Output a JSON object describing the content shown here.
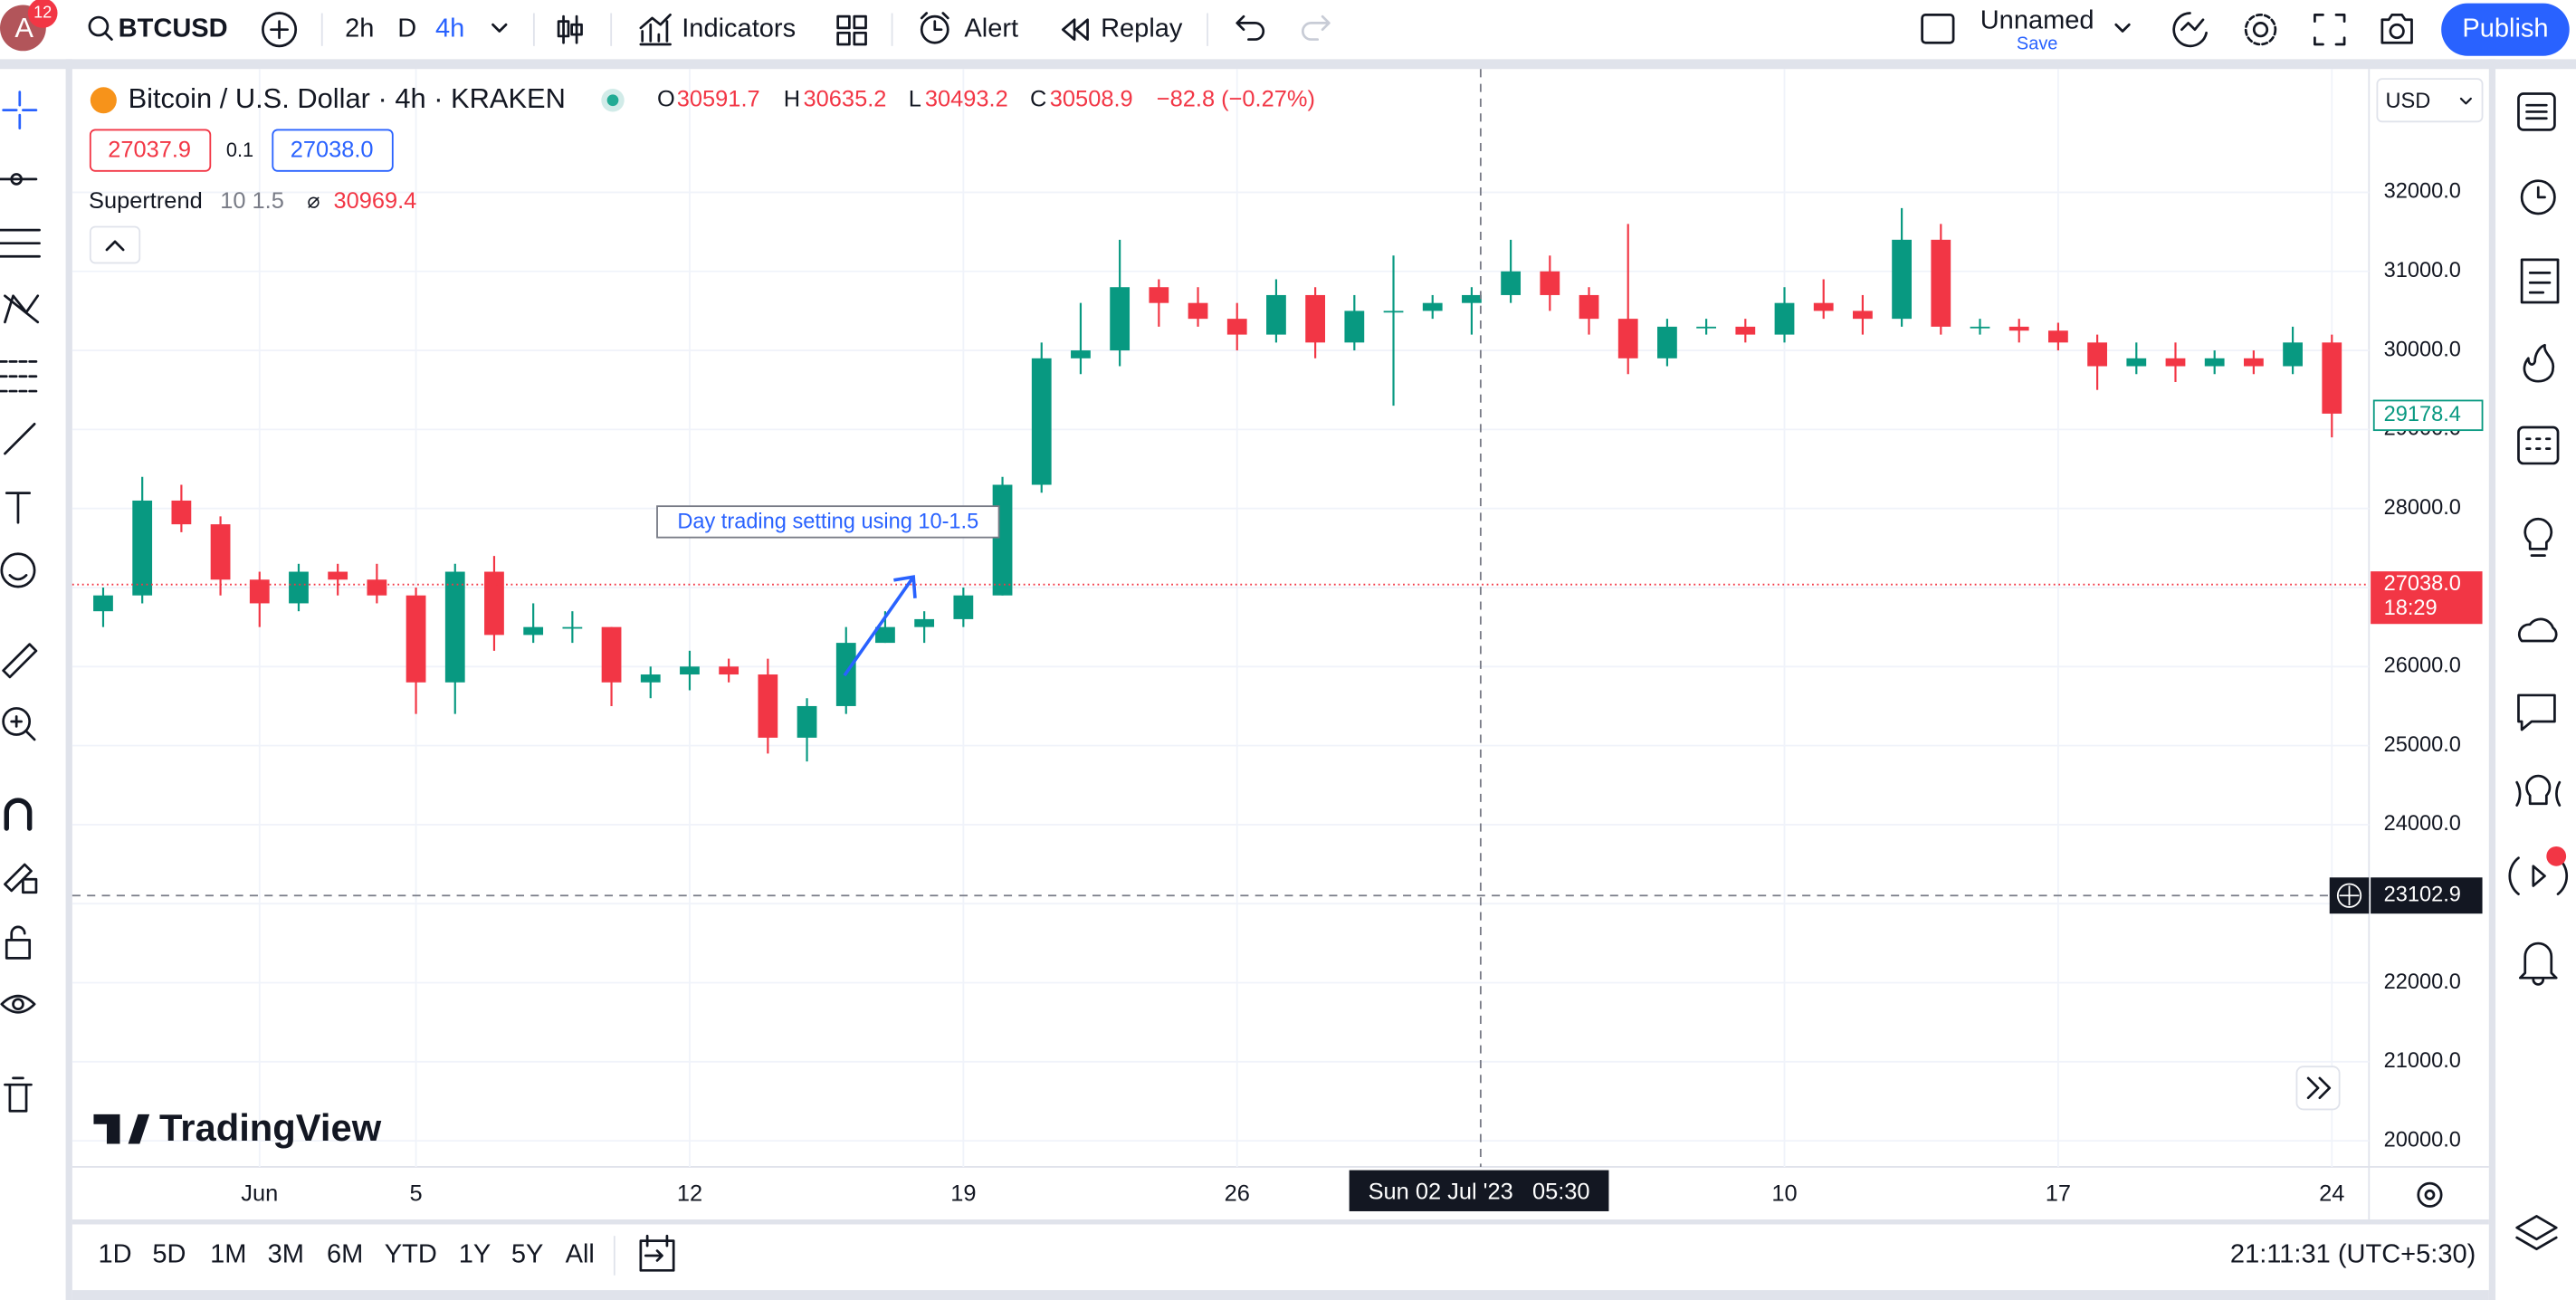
{
  "toolbar": {
    "avatar": "A",
    "avatar_badge": "12",
    "symbol": "BTCUSD",
    "intervals": [
      "2h",
      "D",
      "4h"
    ],
    "indicators": "Indicators",
    "alert": "Alert",
    "replay": "Replay",
    "layout_name": "Unnamed",
    "save": "Save",
    "publish": "Publish"
  },
  "legend": {
    "title": "Bitcoin / U.S. Dollar · 4h · KRAKEN",
    "ohlc": [
      {
        "key": "O",
        "value": "30591.7"
      },
      {
        "key": "H",
        "value": "30635.2"
      },
      {
        "key": "L",
        "value": "30493.2"
      },
      {
        "key": "C",
        "value": "30508.9"
      }
    ],
    "change": "−82.8 (−0.27%)",
    "sell": "27037.9",
    "spread": "0.1",
    "buy": "27038.0",
    "indicator": "Supertrend",
    "indicator_params": "10 1.5",
    "indicator_symbol": "⌀",
    "indicator_value": "30969.4"
  },
  "currency": "USD",
  "annotation": "Day trading setting using 10-1.5",
  "watermark": "TradingView",
  "chart_data": {
    "type": "candlestick",
    "categories": [
      null,
      null,
      null,
      null,
      "Jun",
      null,
      null,
      null,
      "5",
      null,
      null,
      null,
      null,
      null,
      null,
      "12",
      null,
      null,
      null,
      null,
      null,
      null,
      "19",
      null,
      null,
      null,
      null,
      null,
      null,
      "26",
      null,
      null,
      null,
      null,
      null,
      null,
      null,
      null,
      null,
      null,
      null,
      null,
      null,
      "10",
      null,
      null,
      null,
      null,
      null,
      null,
      "17",
      null,
      null,
      null,
      null,
      null,
      null,
      "24"
    ],
    "open": [
      26700,
      26900,
      28100,
      27800,
      27100,
      26800,
      27200,
      27100,
      26900,
      25800,
      27200,
      26400,
      26500,
      26500,
      25800,
      25900,
      26000,
      25900,
      25100,
      25500,
      26300,
      26500,
      26600,
      26900,
      28300,
      29900,
      30000,
      30800,
      30600,
      30400,
      30200,
      30700,
      30100,
      30500,
      30500,
      30600,
      30700,
      31000,
      30700,
      30400,
      29900,
      30300,
      30300,
      30200,
      30600,
      30500,
      30400,
      31400,
      30300,
      30300,
      30250,
      30100,
      29800,
      29900,
      29800,
      29900,
      29800,
      30100
    ],
    "high": [
      27000,
      28400,
      28300,
      27900,
      27200,
      27300,
      27300,
      27300,
      27000,
      27300,
      27400,
      26800,
      26700,
      26500,
      26000,
      26200,
      26100,
      26100,
      25600,
      26500,
      26700,
      26700,
      27000,
      28400,
      30100,
      30600,
      31400,
      30900,
      30800,
      30600,
      30900,
      30800,
      30700,
      31200,
      30700,
      30800,
      31400,
      31200,
      30800,
      31600,
      30400,
      30400,
      30400,
      30800,
      30900,
      30700,
      31800,
      31600,
      30400,
      30400,
      30350,
      30200,
      30100,
      30100,
      30000,
      30000,
      30300,
      30200
    ],
    "low": [
      26500,
      26800,
      27700,
      26900,
      26500,
      26700,
      26900,
      26800,
      25400,
      25400,
      26200,
      26300,
      26300,
      25500,
      25600,
      25700,
      25800,
      24900,
      24800,
      25400,
      26300,
      26300,
      26500,
      26900,
      28200,
      29700,
      29800,
      30300,
      30300,
      30000,
      30100,
      29900,
      30000,
      29300,
      30400,
      30200,
      30600,
      30500,
      30200,
      29700,
      29800,
      30200,
      30100,
      30100,
      30400,
      30200,
      30300,
      30200,
      30200,
      30100,
      30000,
      29500,
      29700,
      29600,
      29700,
      29700,
      29700,
      28900
    ],
    "close": [
      26900,
      28100,
      27800,
      27100,
      26800,
      27200,
      27100,
      26900,
      25800,
      27200,
      26400,
      26500,
      26500,
      25800,
      25900,
      26000,
      25900,
      25100,
      25500,
      26300,
      26500,
      26600,
      26900,
      28300,
      29900,
      30000,
      30800,
      30600,
      30400,
      30200,
      30700,
      30100,
      30500,
      30500,
      30600,
      30700,
      31000,
      30700,
      30400,
      29900,
      30300,
      30300,
      30200,
      30600,
      30500,
      30400,
      31400,
      30300,
      30300,
      30250,
      30100,
      29800,
      29900,
      29800,
      29900,
      29800,
      30100,
      29200
    ],
    "up_color": "#089981",
    "down_color": "#f23645",
    "ylim": [
      19670,
      33560
    ],
    "yticks": [
      {
        "value": 20000,
        "label": "20000.0"
      },
      {
        "value": 21000,
        "label": "21000.0"
      },
      {
        "value": 22000,
        "label": "22000.0"
      },
      {
        "value": 23000,
        "label": "23000.0"
      },
      {
        "value": 24000,
        "label": "24000.0"
      },
      {
        "value": 25000,
        "label": "25000.0"
      },
      {
        "value": 26000,
        "label": "26000.0"
      },
      {
        "value": 27000,
        "label": "27000.0"
      },
      {
        "value": 28000,
        "label": "28000.0"
      },
      {
        "value": 29000,
        "label": "29000.0"
      },
      {
        "value": 30000,
        "label": "30000.0"
      },
      {
        "value": 31000,
        "label": "31000.0"
      },
      {
        "value": 32000,
        "label": "32000.0"
      }
    ],
    "grid": true,
    "last_price": {
      "value": 27038,
      "label": "27038.0"
    },
    "countdown": "18:29",
    "reference_price": 29178.4,
    "crosshair_price": 23102.9,
    "crosshair_time": "Sun 02 Jul '23   05:30"
  },
  "range_buttons": [
    "1D",
    "5D",
    "1M",
    "3M",
    "6M",
    "YTD",
    "1Y",
    "5Y",
    "All"
  ],
  "clock": "21:11:31 (UTC+5:30)"
}
